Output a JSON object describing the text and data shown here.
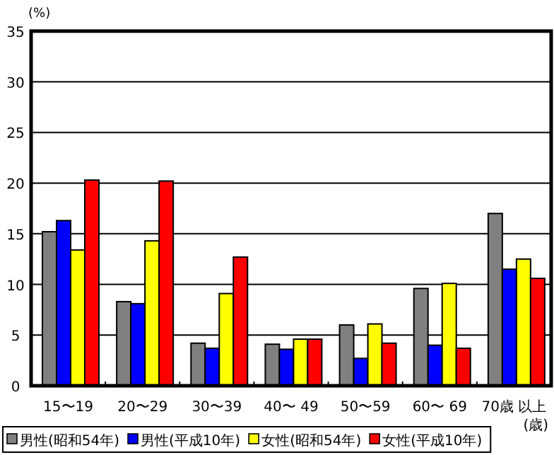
{
  "chart_data": {
    "type": "bar",
    "ylabel": "(%)",
    "xlabel": "(歳)",
    "categories": [
      "15〜19",
      "20〜29",
      "30〜39",
      "40〜 49",
      "50〜59",
      "60〜 69",
      "70歳 以上"
    ],
    "series": [
      {
        "name": "男性(昭和54年)",
        "color": "#808080",
        "values": [
          15.2,
          8.3,
          4.2,
          4.1,
          6.0,
          9.6,
          17.0
        ]
      },
      {
        "name": "男性(平成10年)",
        "color": "#0000ff",
        "values": [
          16.3,
          8.1,
          3.7,
          3.6,
          2.7,
          4.0,
          11.5
        ]
      },
      {
        "name": "女性(昭和54年)",
        "color": "#ffff00",
        "values": [
          13.4,
          14.3,
          9.1,
          4.6,
          6.1,
          10.1,
          12.5
        ]
      },
      {
        "name": "女性(平成10年)",
        "color": "#ff0000",
        "values": [
          20.3,
          20.2,
          12.7,
          4.6,
          4.2,
          3.7,
          10.6
        ]
      }
    ],
    "ylim": [
      0,
      35
    ],
    "yticks": [
      0,
      5,
      10,
      15,
      20,
      25,
      30,
      35
    ],
    "grid": "y",
    "legend": "bottom"
  }
}
